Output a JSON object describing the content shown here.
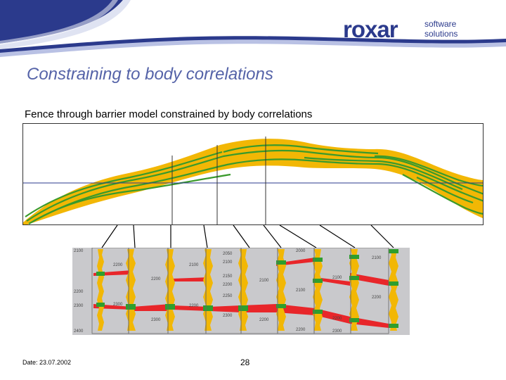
{
  "header": {
    "logo_main": "roxar",
    "logo_sub_1": "software",
    "logo_sub_2": "solutions",
    "brand_color": "#2b3a8c"
  },
  "slide": {
    "title": "Constraining to body correlations",
    "caption": "Fence through barrier model constrained by body correlations"
  },
  "fence": {
    "sand_color": "#f2b705",
    "barrier_color": "#3a9a2c"
  },
  "logs": {
    "sand_color": "#f2b705",
    "barrier_color": "#2e9e2e",
    "correlation_color": "#e8262a",
    "depth_labels": [
      "2100",
      "2200",
      "2300",
      "2400",
      "2200",
      "2300",
      "2200",
      "2300",
      "2100",
      "2200",
      "2050",
      "2100",
      "2150",
      "2200",
      "2250",
      "2300",
      "2000",
      "2100",
      "2200",
      "2100",
      "2200",
      "2100",
      "2200",
      "2300",
      "2100",
      "2200"
    ]
  },
  "footer": {
    "date": "Date: 23.07.2002",
    "page": "28"
  }
}
